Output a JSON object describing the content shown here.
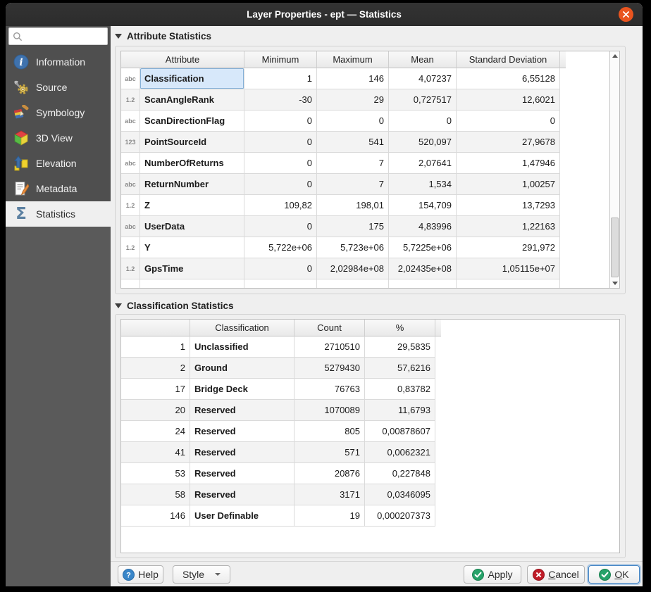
{
  "window": {
    "title": "Layer Properties - ept — Statistics"
  },
  "search": {
    "value": "",
    "placeholder": ""
  },
  "sidebar": {
    "items": [
      {
        "label": "Information",
        "icon": "info-icon",
        "selected": false
      },
      {
        "label": "Source",
        "icon": "source-icon",
        "selected": false
      },
      {
        "label": "Symbology",
        "icon": "symbology-icon",
        "selected": false
      },
      {
        "label": "3D View",
        "icon": "3d-view-icon",
        "selected": false
      },
      {
        "label": "Elevation",
        "icon": "elevation-icon",
        "selected": false
      },
      {
        "label": "Metadata",
        "icon": "metadata-icon",
        "selected": false
      },
      {
        "label": "Statistics",
        "icon": "sigma-icon",
        "selected": true
      }
    ]
  },
  "attribute_statistics": {
    "title": "Attribute Statistics",
    "columns": [
      "Attribute",
      "Minimum",
      "Maximum",
      "Mean",
      "Standard Deviation"
    ],
    "rows": [
      {
        "type": "abc",
        "name": "Classification",
        "min": "1",
        "max": "146",
        "mean": "4,07237",
        "stddev": "6,55128",
        "selected": true
      },
      {
        "type": "1.2",
        "name": "ScanAngleRank",
        "min": "-30",
        "max": "29",
        "mean": "0,727517",
        "stddev": "12,6021"
      },
      {
        "type": "abc",
        "name": "ScanDirectionFlag",
        "min": "0",
        "max": "0",
        "mean": "0",
        "stddev": "0"
      },
      {
        "type": "123",
        "name": "PointSourceId",
        "min": "0",
        "max": "541",
        "mean": "520,097",
        "stddev": "27,9678"
      },
      {
        "type": "abc",
        "name": "NumberOfReturns",
        "min": "0",
        "max": "7",
        "mean": "2,07641",
        "stddev": "1,47946"
      },
      {
        "type": "abc",
        "name": "ReturnNumber",
        "min": "0",
        "max": "7",
        "mean": "1,534",
        "stddev": "1,00257"
      },
      {
        "type": "1.2",
        "name": "Z",
        "min": "109,82",
        "max": "198,01",
        "mean": "154,709",
        "stddev": "13,7293"
      },
      {
        "type": "abc",
        "name": "UserData",
        "min": "0",
        "max": "175",
        "mean": "4,83996",
        "stddev": "1,22163"
      },
      {
        "type": "1.2",
        "name": "Y",
        "min": "5,722e+06",
        "max": "5,723e+06",
        "mean": "5,7225e+06",
        "stddev": "291,972"
      },
      {
        "type": "1.2",
        "name": "GpsTime",
        "min": "0",
        "max": "2,02984e+08",
        "mean": "2,02435e+08",
        "stddev": "1,05115e+07"
      }
    ]
  },
  "classification_statistics": {
    "title": "Classification Statistics",
    "columns": [
      "",
      "Classification",
      "Count",
      "%"
    ],
    "rows": [
      {
        "code": "1",
        "name": "Unclassified",
        "count": "2710510",
        "percent": "29,5835"
      },
      {
        "code": "2",
        "name": "Ground",
        "count": "5279430",
        "percent": "57,6216"
      },
      {
        "code": "17",
        "name": "Bridge Deck",
        "count": "76763",
        "percent": "0,83782"
      },
      {
        "code": "20",
        "name": "Reserved",
        "count": "1070089",
        "percent": "11,6793"
      },
      {
        "code": "24",
        "name": "Reserved",
        "count": "805",
        "percent": "0,00878607"
      },
      {
        "code": "41",
        "name": "Reserved",
        "count": "571",
        "percent": "0,0062321"
      },
      {
        "code": "53",
        "name": "Reserved",
        "count": "20876",
        "percent": "0,227848"
      },
      {
        "code": "58",
        "name": "Reserved",
        "count": "3171",
        "percent": "0,0346095"
      },
      {
        "code": "146",
        "name": "User Definable",
        "count": "19",
        "percent": "0,000207373"
      }
    ]
  },
  "buttons": {
    "help": "Help",
    "style": "Style",
    "apply": "Apply",
    "cancel": "Cancel",
    "ok": "OK"
  },
  "colors": {
    "titlebar_bg": "#2e2e2e",
    "close_button": "#e9541f",
    "sidebar_bg": "#4f4f4f",
    "panel_bg": "#efefef",
    "selection_fill": "#d7e8fa",
    "selection_border": "#85b1d8",
    "sigma_icon": "#5d81a2",
    "icon_green": "#26a269",
    "icon_red": "#c01c28",
    "icon_blue": "#3986c9",
    "ok_focus_border": "#4585c5"
  }
}
